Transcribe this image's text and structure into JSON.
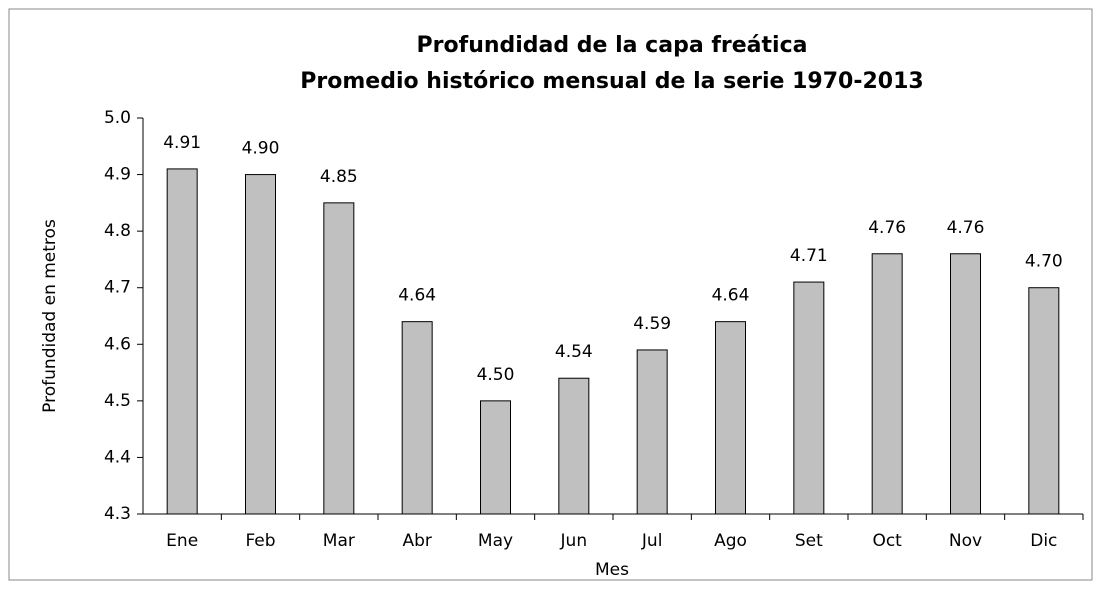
{
  "chart_data": {
    "type": "bar",
    "title": "Profundidad de la capa freática",
    "subtitle": "Promedio histórico mensual de la serie 1970-2013",
    "x_label": "Mes",
    "y_label": "Profundidad en metros",
    "categories": [
      "Ene",
      "Feb",
      "Mar",
      "Abr",
      "May",
      "Jun",
      "Jul",
      "Ago",
      "Set",
      "Oct",
      "Nov",
      "Dic"
    ],
    "values": [
      4.91,
      4.9,
      4.85,
      4.64,
      4.5,
      4.54,
      4.59,
      4.64,
      4.71,
      4.76,
      4.76,
      4.7
    ],
    "value_labels": [
      "4.91",
      "4.90",
      "4.85",
      "4.64",
      "4.50",
      "4.54",
      "4.59",
      "4.64",
      "4.71",
      "4.76",
      "4.76",
      "4.70"
    ],
    "color": "#c0c0c0",
    "ylim": [
      4.3,
      5.0
    ],
    "yticks": [
      4.3,
      4.4,
      4.5,
      4.6,
      4.7,
      4.8,
      4.9,
      {
        "value": 5.0,
        "label": "5.0"
      }
    ],
    "grid": false
  }
}
